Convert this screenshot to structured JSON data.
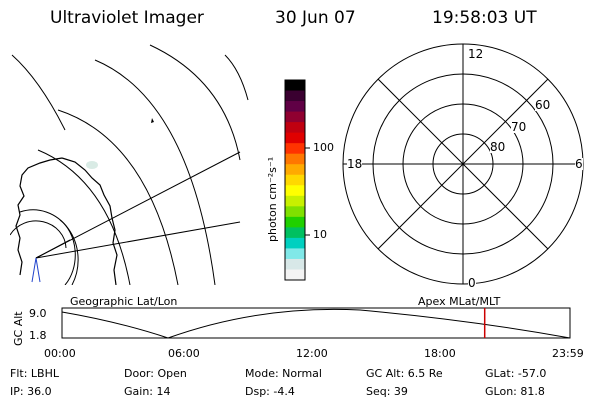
{
  "header": {
    "title": "Ultraviolet Imager",
    "date": "30 Jun 07",
    "time": "19:58:03 UT"
  },
  "colorbar": {
    "unit_label": "photon cm⁻²s⁻¹",
    "ticks": [
      "100",
      "10"
    ],
    "colors": [
      "#000000",
      "#3a0030",
      "#600045",
      "#900030",
      "#c00010",
      "#e00000",
      "#ff3300",
      "#ff7700",
      "#ffaa00",
      "#ffd800",
      "#ffff00",
      "#c8f000",
      "#80e000",
      "#20d000",
      "#00c060",
      "#00d0c0",
      "#80e8e8",
      "#d8e8e8",
      "#f4f4f4"
    ]
  },
  "polar_plot": {
    "hour_labels": [
      "12",
      "18",
      "6",
      "0"
    ],
    "lat_labels": [
      "60",
      "70",
      "80"
    ]
  },
  "timeline": {
    "left_title": "Geographic Lat/Lon",
    "right_title": "Apex MLat/MLT",
    "axis_label": "GC Alt",
    "y_ticks": [
      "9.0",
      "1.8"
    ],
    "x_ticks": [
      "00:00",
      "06:00",
      "12:00",
      "18:00",
      "23:59"
    ],
    "current_time_fraction": 0.832,
    "marker_color": "#cc0000"
  },
  "status": {
    "flt": "Flt: LBHL",
    "ip": "IP: 36.0",
    "door": "Door: Open",
    "gain": "Gain: 14",
    "mode": "Mode: Normal",
    "dsp": "Dsp:    -4.4",
    "gc_alt": "GC Alt: 6.5 Re",
    "seq": "Seq: 39",
    "glat": "GLat: -57.0",
    "glon": "GLon:  81.8"
  }
}
